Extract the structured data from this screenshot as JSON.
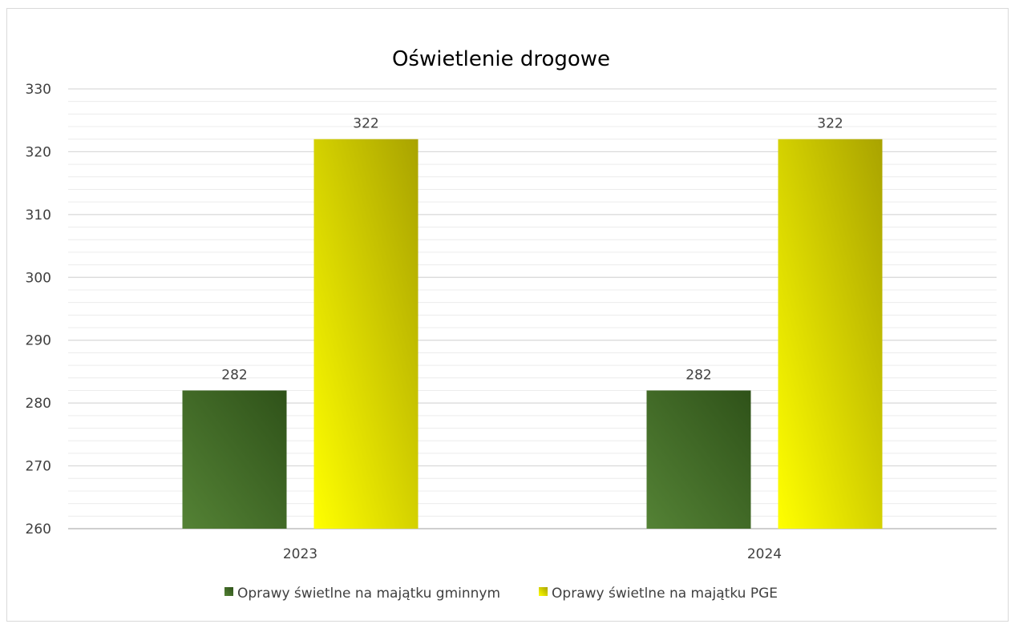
{
  "chart_data": {
    "type": "bar",
    "title": "Oświetlenie drogowe",
    "categories": [
      "2023",
      "2024"
    ],
    "series": [
      {
        "name": "Oprawy świetlne na majątku gminnym",
        "values": [
          282,
          282
        ],
        "color_light": "#548235",
        "color_dark": "#2f5219"
      },
      {
        "name": "Oprawy świetlne na majątku PGE",
        "values": [
          322,
          322
        ],
        "color_light": "#ffff00",
        "color_dark": "#a9a300"
      }
    ],
    "ylim": [
      260,
      330
    ],
    "yticks": [
      260,
      270,
      280,
      290,
      300,
      310,
      320,
      330
    ],
    "minor_gridlines": true,
    "data_labels": true,
    "legend_position": "bottom",
    "grid_color": "#d9d9d9"
  }
}
